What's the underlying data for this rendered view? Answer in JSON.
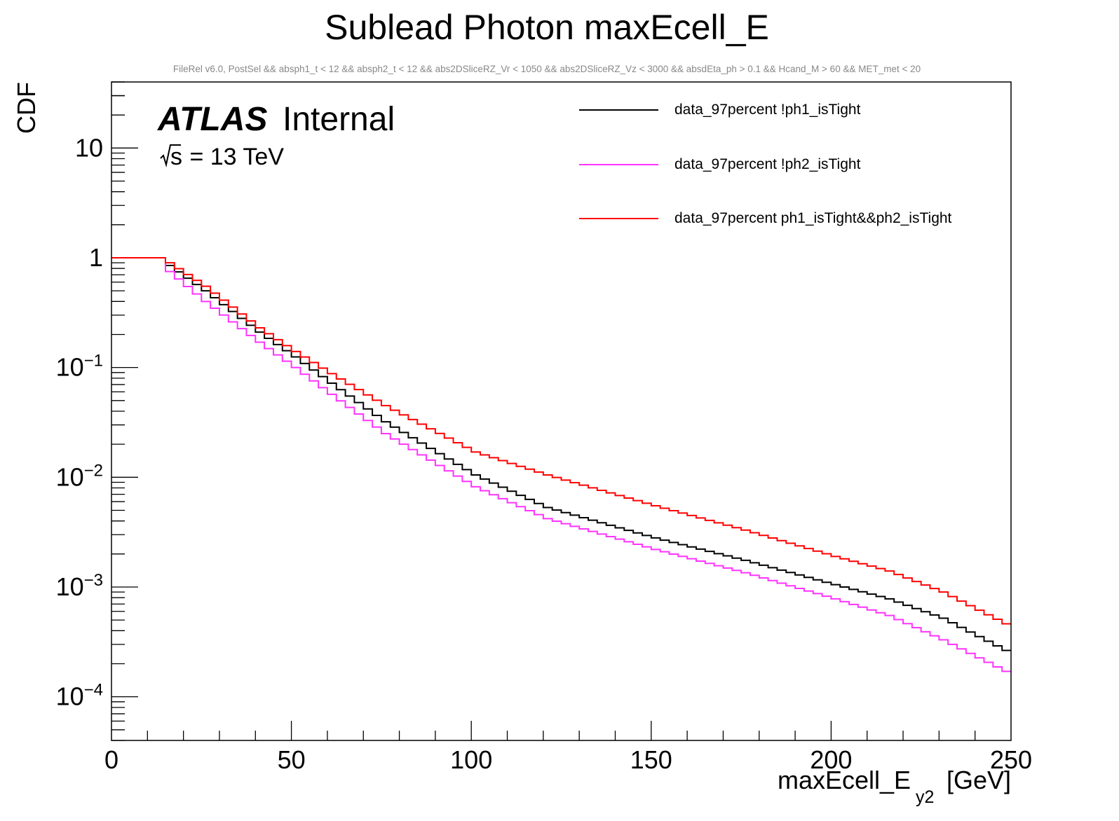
{
  "chart_data": {
    "type": "line",
    "style": "step",
    "title": "Sublead Photon maxEcell_E",
    "subtitle": "FileRel v6.0, PostSel &&  absph1_t < 12 && absph2_t < 12 && abs2DSliceRZ_Vr < 1050 && abs2DSliceRZ_Vz < 3000 && absdEta_ph > 0.1 && Hcand_M > 60 && MET_met < 20",
    "xlabel": "maxEcell_E",
    "xlabel_sub": "y2",
    "xlabel_unit": "[GeV]",
    "ylabel": "CDF",
    "xlim": [
      0,
      250
    ],
    "ylim": [
      4e-05,
      40
    ],
    "yscale": "log",
    "x_ticks": [
      0,
      50,
      100,
      150,
      200,
      250
    ],
    "x_tick_labels": [
      "0",
      "50",
      "100",
      "150",
      "200",
      "250"
    ],
    "y_tick_labels": [
      {
        "value": 10,
        "base": "10",
        "exp": ""
      },
      {
        "value": 1,
        "base": "1",
        "exp": ""
      },
      {
        "value": 0.1,
        "base": "10",
        "exp": "−1"
      },
      {
        "value": 0.01,
        "base": "10",
        "exp": "−2"
      },
      {
        "value": 0.001,
        "base": "10",
        "exp": "−3"
      },
      {
        "value": 0.0001,
        "base": "10",
        "exp": "−4"
      }
    ],
    "annotation": {
      "atlas": "ATLAS",
      "status": "Internal",
      "energy_prefix": "s",
      "energy_suffix": " = 13 TeV"
    },
    "legend_position": "top-right",
    "bin_width": 2.5,
    "series": [
      {
        "name": "data_97percent !ph1_isTight",
        "color": "#000000",
        "points": [
          [
            0,
            1.0
          ],
          [
            12.5,
            1.0
          ],
          [
            15,
            0.85
          ],
          [
            25,
            0.5
          ],
          [
            40,
            0.21
          ],
          [
            50,
            0.125
          ],
          [
            60,
            0.072
          ],
          [
            75,
            0.032
          ],
          [
            100,
            0.0105
          ],
          [
            120,
            0.0053
          ],
          [
            150,
            0.0028
          ],
          [
            175,
            0.00175
          ],
          [
            200,
            0.00105
          ],
          [
            215,
            0.00078
          ],
          [
            230,
            0.00052
          ],
          [
            250,
            0.00024
          ]
        ]
      },
      {
        "name": "data_97percent !ph2_isTight",
        "color": "#ff33ff",
        "points": [
          [
            0,
            1.0
          ],
          [
            12.5,
            1.0
          ],
          [
            15,
            0.75
          ],
          [
            25,
            0.4
          ],
          [
            40,
            0.17
          ],
          [
            50,
            0.1
          ],
          [
            60,
            0.057
          ],
          [
            75,
            0.025
          ],
          [
            100,
            0.0082
          ],
          [
            120,
            0.0042
          ],
          [
            150,
            0.0022
          ],
          [
            175,
            0.00135
          ],
          [
            200,
            0.00078
          ],
          [
            215,
            0.00055
          ],
          [
            230,
            0.00033
          ],
          [
            250,
            0.000155
          ]
        ]
      },
      {
        "name": "data_97percent ph1_isTight&&ph2_isTight",
        "color": "#ff0000",
        "points": [
          [
            0,
            1.0
          ],
          [
            12.5,
            1.0
          ],
          [
            15,
            0.9
          ],
          [
            25,
            0.55
          ],
          [
            40,
            0.23
          ],
          [
            50,
            0.14
          ],
          [
            60,
            0.088
          ],
          [
            75,
            0.045
          ],
          [
            100,
            0.017
          ],
          [
            120,
            0.0105
          ],
          [
            150,
            0.0055
          ],
          [
            175,
            0.0033
          ],
          [
            200,
            0.0019
          ],
          [
            215,
            0.0014
          ],
          [
            230,
            0.0009
          ],
          [
            250,
            0.00042
          ]
        ]
      }
    ]
  }
}
